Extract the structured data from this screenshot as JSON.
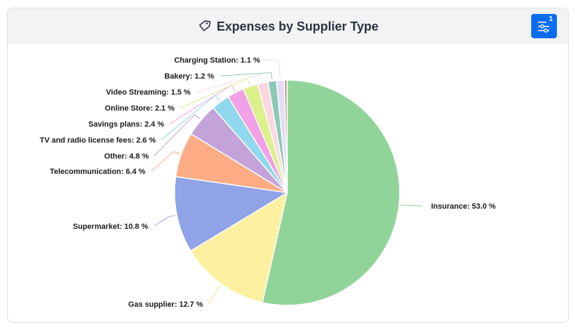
{
  "header": {
    "title": "Expenses by Supplier Type",
    "title_icon": "tag-icon",
    "filter_button": {
      "icon": "sliders-icon",
      "badge": "1"
    }
  },
  "colors": {
    "header_bg": "#f2f3f5",
    "accent": "#0a6cf0"
  },
  "chart_data": {
    "type": "pie",
    "title": "Expenses by Supplier Type",
    "start_angle_deg": 0,
    "direction": "clockwise",
    "slices": [
      {
        "label": "Insurance",
        "value": 53.0,
        "color": "#91d49a",
        "text": "Insurance: 53.0 %"
      },
      {
        "label": "Gas supplier",
        "value": 12.7,
        "color": "#fdf0a0",
        "text": "Gas supplier: 12.7 %"
      },
      {
        "label": "Supermarket",
        "value": 10.8,
        "color": "#8fa3e6",
        "text": "Supermarket: 10.8 %"
      },
      {
        "label": "Telecommunication",
        "value": 6.4,
        "color": "#fdac86",
        "text": "Telecommunication: 6.4 %"
      },
      {
        "label": "Other",
        "value": 4.8,
        "color": "#c3a3d9",
        "text": "Other: 4.8 %"
      },
      {
        "label": "TV and radio license fees",
        "value": 2.6,
        "color": "#8fd8ee",
        "text": "TV and radio license fees: 2.6 %"
      },
      {
        "label": "Savings plans",
        "value": 2.4,
        "color": "#f2a1e6",
        "text": "Savings plans: 2.4 %"
      },
      {
        "label": "Online Store",
        "value": 2.1,
        "color": "#dcf08c",
        "text": "Online Store: 2.1 %"
      },
      {
        "label": "Video Streaming",
        "value": 1.5,
        "color": "#fbd8e0",
        "text": "Video Streaming: 1.5 %"
      },
      {
        "label": "Bakery",
        "value": 1.2,
        "color": "#8cc9b4",
        "text": "Bakery: 1.2 %"
      },
      {
        "label": "Charging Station",
        "value": 1.1,
        "color": "#e2dcf8",
        "text": "Charging Station: 1.1 %"
      },
      {
        "label": "",
        "value": 0.4,
        "color": "#c29e8a",
        "text": ""
      }
    ]
  }
}
